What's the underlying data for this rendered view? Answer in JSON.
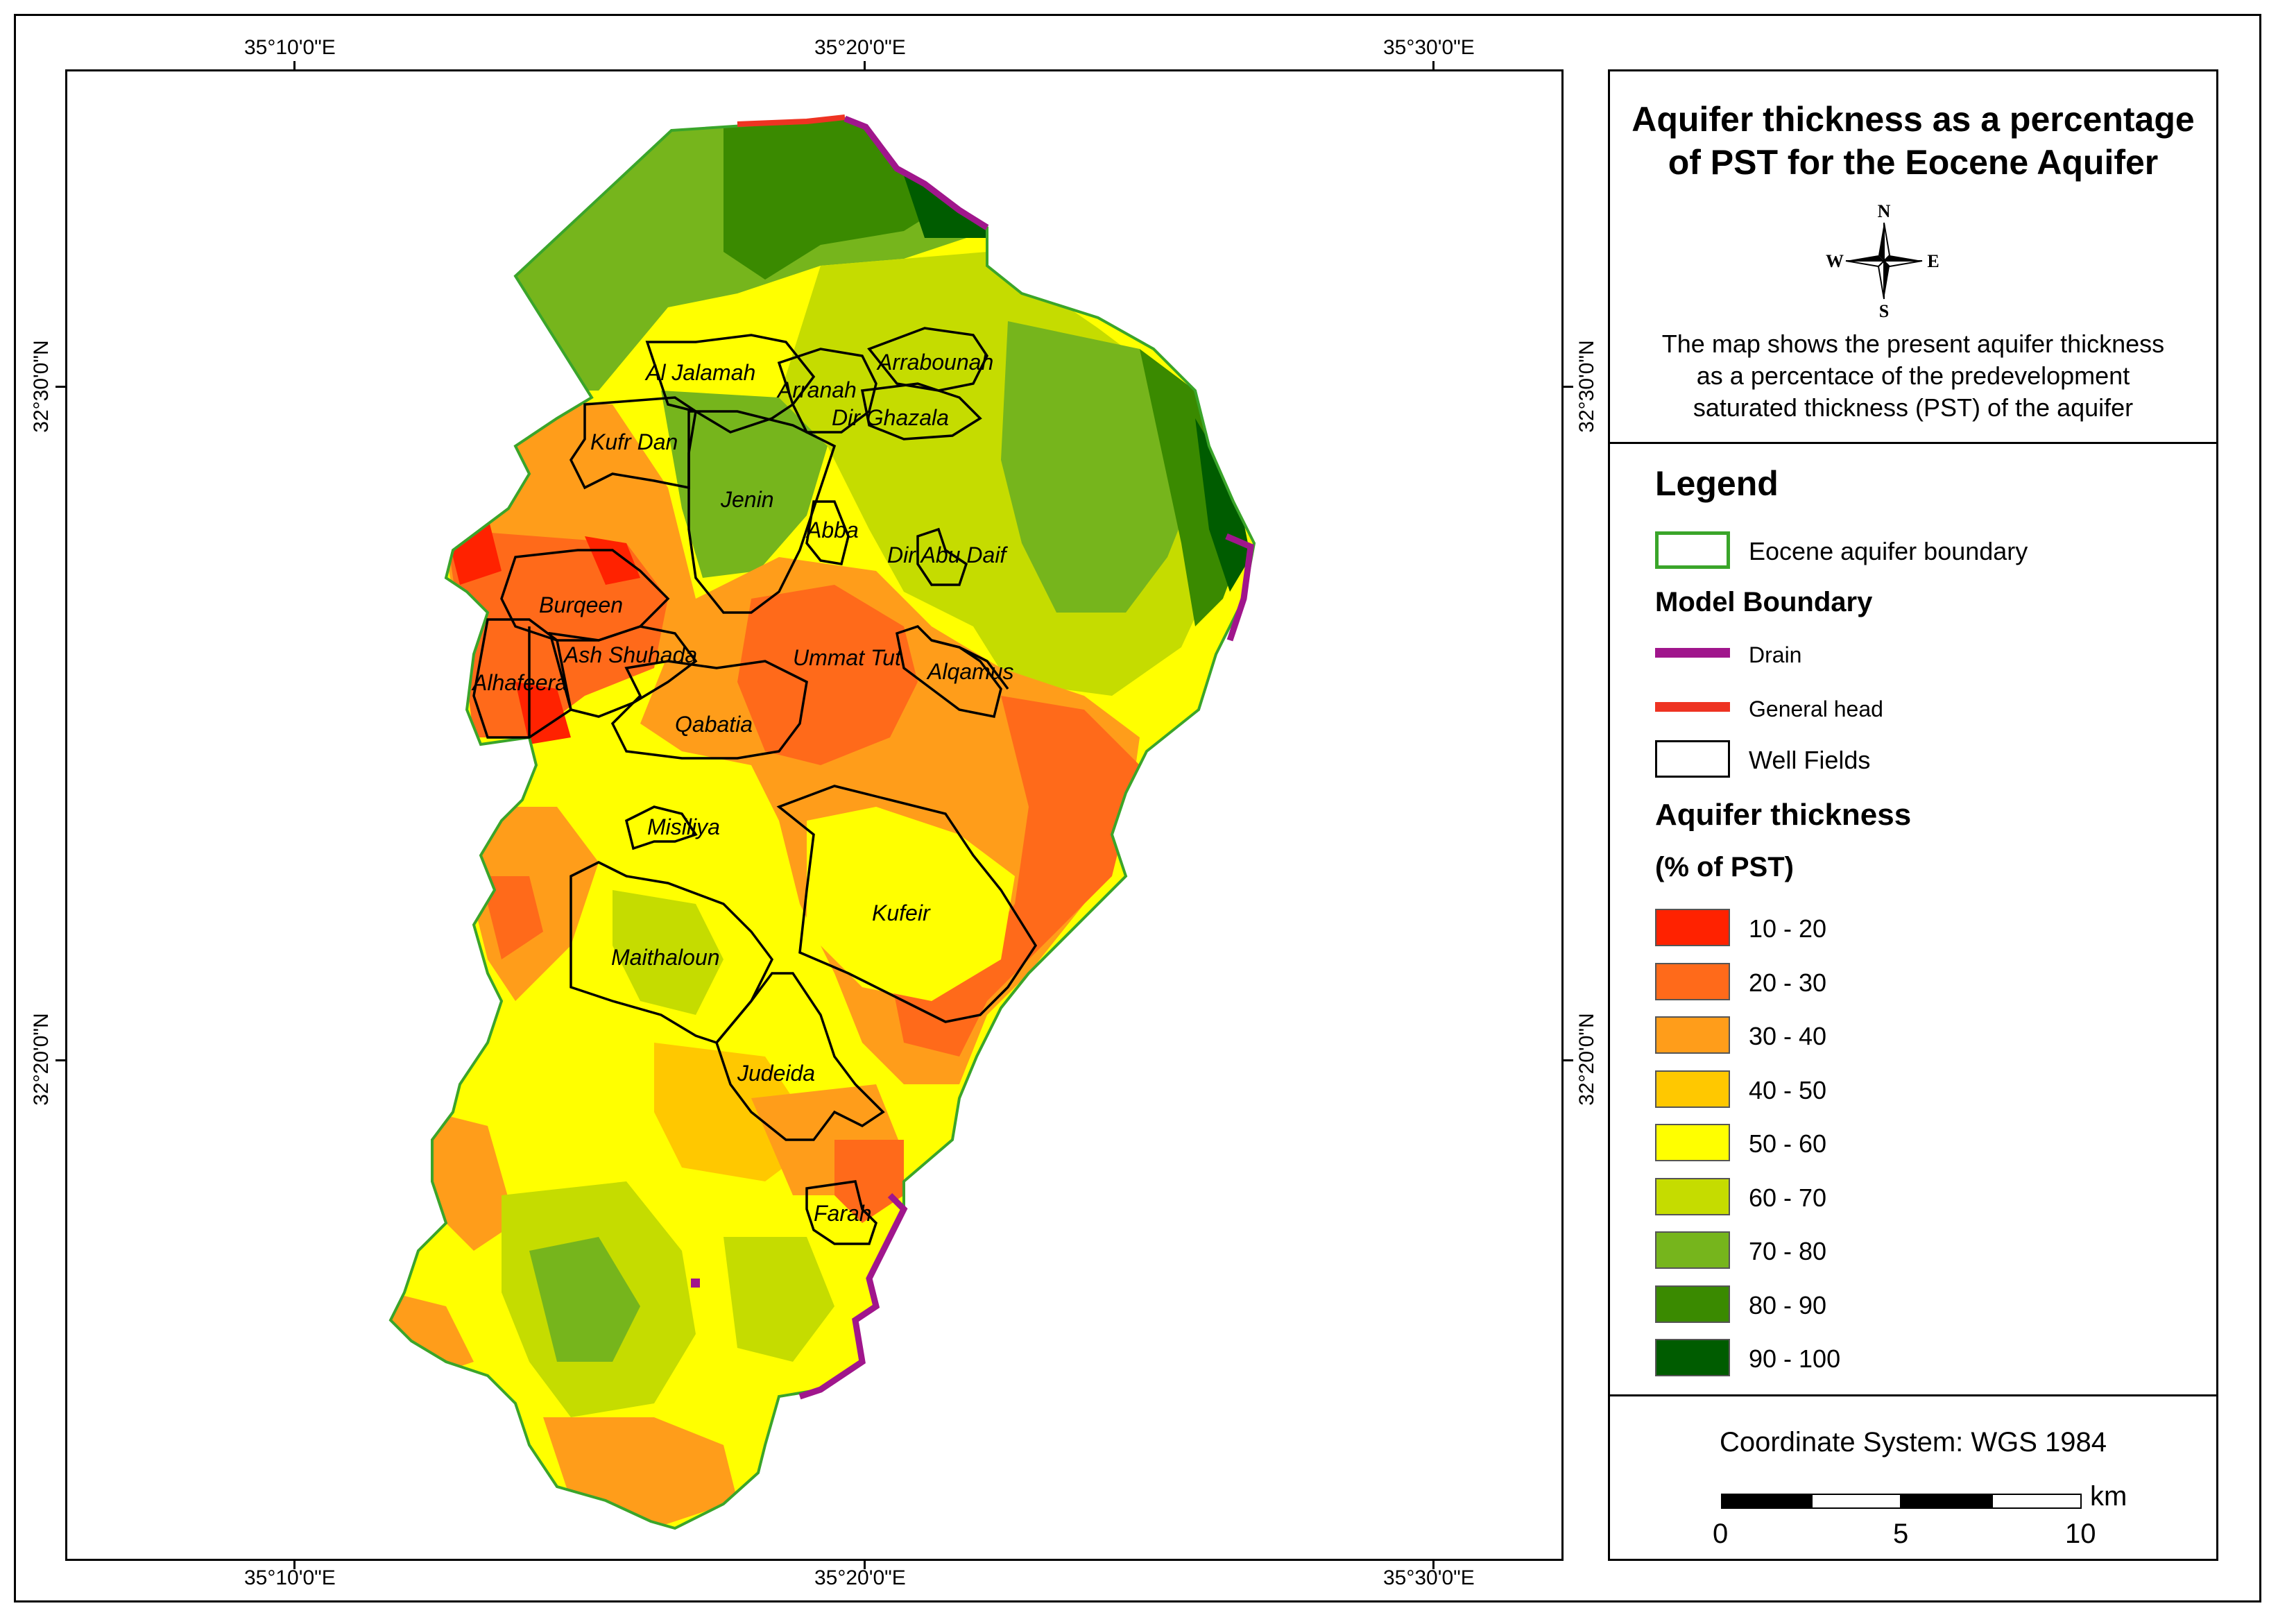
{
  "coords": {
    "top": [
      "35°10'0\"E",
      "35°20'0\"E",
      "35°30'0\"E"
    ],
    "bottom": [
      "35°10'0\"E",
      "35°20'0\"E",
      "35°30'0\"E"
    ],
    "left": [
      "32°30'0\"N",
      "32°20'0\"N"
    ],
    "right": [
      "32°30'0\"N",
      "32°20'0\"N"
    ]
  },
  "title": {
    "line1": "Aquifer thickness as a percentage",
    "line2": "of PST for the Eocene Aquifer"
  },
  "compass": {
    "n": "N",
    "s": "S",
    "e": "E",
    "w": "W"
  },
  "description": {
    "line1": "The map shows the present aquifer thickness",
    "line2": "as a percentace of the predevelopment",
    "line3": "saturated thickness (PST) of the aquifer"
  },
  "legend": {
    "heading": "Legend",
    "boundary_label": "Eocene aquifer boundary",
    "model_heading": "Model Boundary",
    "drain_label": "Drain",
    "general_head_label": "General head",
    "wellfields_label": "Well Fields",
    "thickness_heading": "Aquifer thickness",
    "thickness_subheading": "(% of PST)",
    "classes": [
      {
        "label": "10 - 20",
        "color": "#ff2200"
      },
      {
        "label": "20 - 30",
        "color": "#ff6a1a"
      },
      {
        "label": "30 - 40",
        "color": "#ff9d1a"
      },
      {
        "label": "40 - 50",
        "color": "#ffc800"
      },
      {
        "label": "50 - 60",
        "color": "#ffff00"
      },
      {
        "label": "60 - 70",
        "color": "#c5dc00"
      },
      {
        "label": "70 - 80",
        "color": "#76b51c"
      },
      {
        "label": "80 - 90",
        "color": "#3a8a00"
      },
      {
        "label": "90 - 100",
        "color": "#005c00"
      }
    ],
    "colors": {
      "boundary": "#3aa52a",
      "drain": "#a0168c",
      "general_head": "#ee3322",
      "wellfield": "#ffffff"
    }
  },
  "footer": {
    "coord_system": "Coordinate System: WGS 1984",
    "scale_unit": "km",
    "scale_ticks": [
      "0",
      "5",
      "10"
    ]
  },
  "well_fields": [
    "Al Jalamah",
    "Arranah",
    "Arrabounah",
    "Dir Ghazala",
    "Kufr Dan",
    "Jenin",
    "Abba",
    "Dir Abu Daif",
    "Burqeen",
    "Ash Shuhada",
    "Alhafeera",
    "Ummat Tut",
    "Alqamus",
    "Qabatia",
    "Misiliya",
    "Kufeir",
    "Maithaloun",
    "Judeida",
    "Farah"
  ]
}
